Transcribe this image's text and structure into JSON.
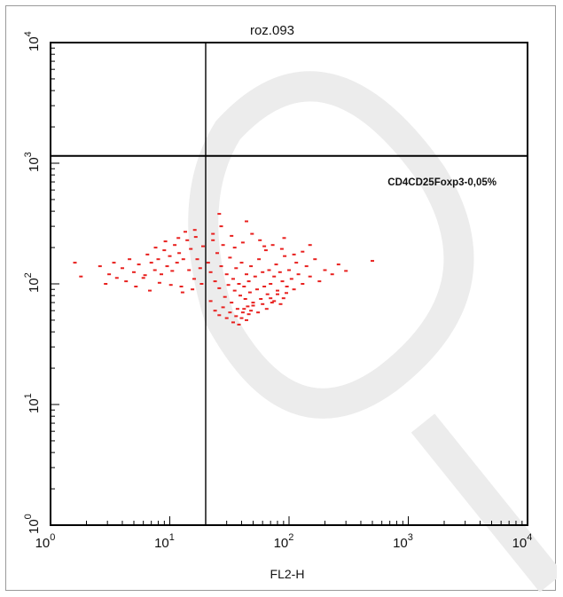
{
  "chart_data": {
    "type": "scatter",
    "title": "roz.093",
    "xlabel": "FL2-H",
    "ylabel": "",
    "x_scale": "log",
    "y_scale": "log",
    "xlim": [
      1,
      10000
    ],
    "ylim": [
      1,
      10000
    ],
    "x_ticks": [
      {
        "base": "10",
        "exp": "0"
      },
      {
        "base": "10",
        "exp": "1"
      },
      {
        "base": "10",
        "exp": "2"
      },
      {
        "base": "10",
        "exp": "3"
      },
      {
        "base": "10",
        "exp": "4"
      }
    ],
    "y_ticks": [
      {
        "base": "10",
        "exp": "0"
      },
      {
        "base": "10",
        "exp": "1"
      },
      {
        "base": "10",
        "exp": "2"
      },
      {
        "base": "10",
        "exp": "3"
      },
      {
        "base": "10",
        "exp": "4"
      }
    ],
    "quadrant_gates": {
      "x": 20,
      "y": 1150
    },
    "annotation": "CD4CD25Foxp3-0,05%",
    "point_color": "#e8201e",
    "grid": false,
    "points": [
      [
        1.6,
        150
      ],
      [
        1.8,
        115
      ],
      [
        2.6,
        140
      ],
      [
        3.1,
        120
      ],
      [
        3.4,
        150
      ],
      [
        4.0,
        135
      ],
      [
        4.6,
        160
      ],
      [
        5.0,
        125
      ],
      [
        5.5,
        145
      ],
      [
        6.0,
        112
      ],
      [
        6.5,
        175
      ],
      [
        7.0,
        150
      ],
      [
        7.5,
        130
      ],
      [
        8.0,
        160
      ],
      [
        8.5,
        120
      ],
      [
        9.0,
        190
      ],
      [
        9.5,
        140
      ],
      [
        10,
        170
      ],
      [
        10.5,
        128
      ],
      [
        11,
        210
      ],
      [
        11.5,
        150
      ],
      [
        12,
        180
      ],
      [
        12.5,
        95
      ],
      [
        13,
        160
      ],
      [
        14,
        230
      ],
      [
        14.5,
        130
      ],
      [
        15,
        195
      ],
      [
        16,
        110
      ],
      [
        16.5,
        245
      ],
      [
        17,
        160
      ],
      [
        18,
        135
      ],
      [
        19,
        205
      ],
      [
        5.2,
        95
      ],
      [
        6.8,
        88
      ],
      [
        8.2,
        102
      ],
      [
        10.2,
        98
      ],
      [
        12.8,
        85
      ],
      [
        15.5,
        90
      ],
      [
        18.5,
        100
      ],
      [
        7.6,
        200
      ],
      [
        11.8,
        240
      ],
      [
        13.5,
        270
      ],
      [
        9.2,
        225
      ],
      [
        16.2,
        280
      ],
      [
        4.3,
        105
      ],
      [
        3.6,
        112
      ],
      [
        2.9,
        100
      ],
      [
        6.2,
        118
      ],
      [
        21,
        150
      ],
      [
        22,
        125
      ],
      [
        23,
        260
      ],
      [
        24,
        105
      ],
      [
        25,
        180
      ],
      [
        26,
        92
      ],
      [
        27,
        140
      ],
      [
        28,
        210
      ],
      [
        29,
        78
      ],
      [
        30,
        120
      ],
      [
        31,
        98
      ],
      [
        32,
        165
      ],
      [
        33,
        70
      ],
      [
        34,
        110
      ],
      [
        35,
        88
      ],
      [
        36,
        135
      ],
      [
        37,
        62
      ],
      [
        38,
        100
      ],
      [
        39,
        80
      ],
      [
        40,
        150
      ],
      [
        41,
        58
      ],
      [
        42,
        95
      ],
      [
        43,
        75
      ],
      [
        44,
        120
      ],
      [
        45,
        65
      ],
      [
        46,
        105
      ],
      [
        47,
        85
      ],
      [
        48,
        140
      ],
      [
        50,
        70
      ],
      [
        52,
        115
      ],
      [
        54,
        90
      ],
      [
        56,
        160
      ],
      [
        58,
        75
      ],
      [
        60,
        125
      ],
      [
        62,
        95
      ],
      [
        64,
        190
      ],
      [
        66,
        82
      ],
      [
        68,
        130
      ],
      [
        70,
        100
      ],
      [
        72,
        70
      ],
      [
        75,
        115
      ],
      [
        78,
        145
      ],
      [
        80,
        88
      ],
      [
        84,
        125
      ],
      [
        88,
        105
      ],
      [
        92,
        170
      ],
      [
        96,
        95
      ],
      [
        100,
        130
      ],
      [
        105,
        110
      ],
      [
        110,
        90
      ],
      [
        115,
        150
      ],
      [
        120,
        120
      ],
      [
        130,
        100
      ],
      [
        140,
        140
      ],
      [
        150,
        115
      ],
      [
        165,
        160
      ],
      [
        180,
        105
      ],
      [
        200,
        130
      ],
      [
        230,
        120
      ],
      [
        260,
        145
      ],
      [
        300,
        128
      ],
      [
        500,
        155
      ],
      [
        22,
        72
      ],
      [
        24,
        60
      ],
      [
        26,
        55
      ],
      [
        28,
        64
      ],
      [
        30,
        52
      ],
      [
        32,
        58
      ],
      [
        34,
        48
      ],
      [
        36,
        54
      ],
      [
        38,
        46
      ],
      [
        40,
        52
      ],
      [
        42,
        62
      ],
      [
        44,
        50
      ],
      [
        46,
        56
      ],
      [
        48,
        60
      ],
      [
        50,
        66
      ],
      [
        55,
        58
      ],
      [
        60,
        68
      ],
      [
        65,
        62
      ],
      [
        70,
        76
      ],
      [
        75,
        72
      ],
      [
        80,
        82
      ],
      [
        85,
        68
      ],
      [
        90,
        76
      ],
      [
        95,
        84
      ],
      [
        23,
        230
      ],
      [
        27,
        300
      ],
      [
        33,
        250
      ],
      [
        41,
        220
      ],
      [
        49,
        260
      ],
      [
        57,
        230
      ],
      [
        73,
        210
      ],
      [
        91,
        240
      ],
      [
        26,
        380
      ],
      [
        44,
        330
      ],
      [
        35,
        200
      ],
      [
        62,
        205
      ],
      [
        87,
        195
      ],
      [
        110,
        175
      ],
      [
        130,
        185
      ],
      [
        150,
        210
      ]
    ]
  }
}
